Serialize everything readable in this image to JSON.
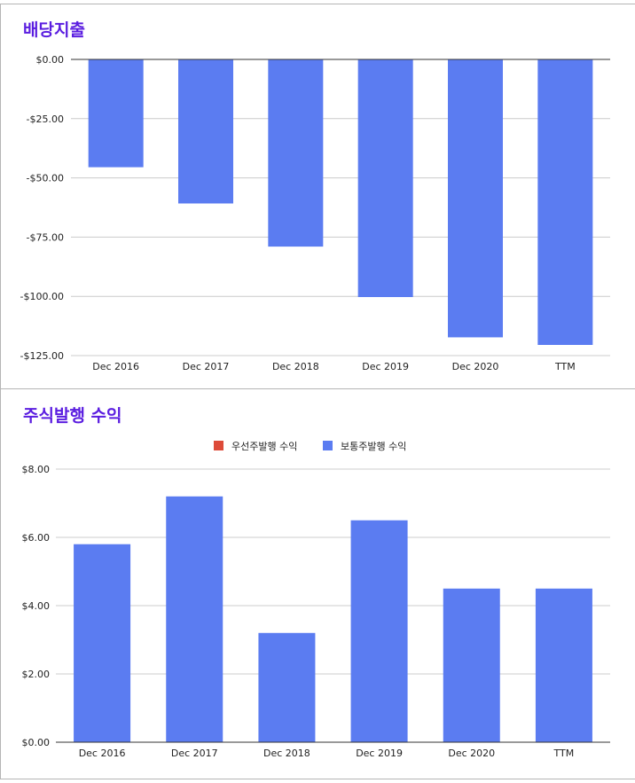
{
  "chart_data": [
    {
      "type": "bar",
      "title": "배당지출",
      "categories": [
        "Dec 2016",
        "Dec 2017",
        "Dec 2018",
        "Dec 2019",
        "Dec 2020",
        "TTM"
      ],
      "values": [
        -45.5,
        -60.8,
        -79.0,
        -100.3,
        -117.3,
        -120.5
      ],
      "ylim": [
        -125,
        0
      ],
      "yticks": [
        0,
        -25,
        -50,
        -75,
        -100,
        -125
      ],
      "ytick_labels": [
        "$0.00",
        "-$25.00",
        "-$50.00",
        "-$75.00",
        "-$100.00",
        "-$125.00"
      ],
      "grid": true,
      "legend": "none",
      "color": "#5b7cf1"
    },
    {
      "type": "bar",
      "title": "주식발행 수익",
      "categories": [
        "Dec 2016",
        "Dec 2017",
        "Dec 2018",
        "Dec 2019",
        "Dec 2020",
        "TTM"
      ],
      "series": [
        {
          "name": "우선주발행 수익",
          "color": "#dd4b39",
          "values": [
            0,
            0,
            0,
            0,
            0,
            0
          ]
        },
        {
          "name": "보통주발행 수익",
          "color": "#5b7cf1",
          "values": [
            5.8,
            7.2,
            3.2,
            6.5,
            4.5,
            4.5
          ]
        }
      ],
      "ylim": [
        0,
        8
      ],
      "yticks": [
        0,
        2,
        4,
        6,
        8
      ],
      "ytick_labels": [
        "$0.00",
        "$2.00",
        "$4.00",
        "$6.00",
        "$8.00"
      ],
      "grid": true,
      "legend": "top-center"
    }
  ]
}
